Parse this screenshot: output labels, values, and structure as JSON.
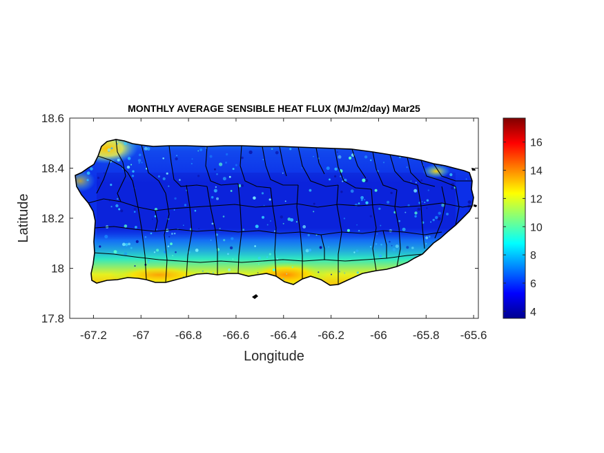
{
  "map": {
    "title": "MONTHLY AVERAGE SENSIBLE HEAT FLUX (MJ/m2/day) Mar25",
    "xlabel": "Longitude",
    "ylabel": "Latitude",
    "xlim": [
      -67.3,
      -65.58
    ],
    "ylim": [
      17.8,
      18.6
    ],
    "xticks": [
      "-67.2",
      "-67",
      "-66.8",
      "-66.6",
      "-66.4",
      "-66.2",
      "-66",
      "-65.8",
      "-65.6"
    ],
    "yticks": [
      "18.6",
      "18.4",
      "18.2",
      "18",
      "17.8"
    ],
    "colormap": "jet",
    "colorbar": {
      "min": 3.5,
      "max": 17.7,
      "ticks": [
        "16",
        "14",
        "12",
        "10",
        "8",
        "6",
        "4"
      ]
    },
    "region": "Puerto Rico municipalities",
    "field_description": {
      "interior_typical": 4.5,
      "north_coast": 8,
      "south_coast": 12,
      "southwest_coast_max": 14,
      "northwest_corner": 13
    }
  }
}
